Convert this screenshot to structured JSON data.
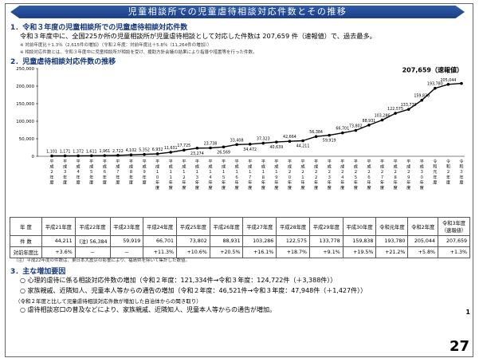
{
  "header": {
    "title": "児童相談所での児童虐待相談対応件数とその推移"
  },
  "section1": {
    "heading": "1．令和３年度の児童相談所での児童虐待相談対応件数",
    "line1": "令和３年度中に、全国225か所の児童相談所が児童虐待相談として対応した件数は 207,659 件（速報値）で、過去最多。",
    "note1": "※ 対前年度比＋1.3％（2,615件の増加）（令和２年度：対前年度比＋5.8％（11,264件の増加））",
    "note2": "※ 相談対応件数とは、令和３年度中に児童相談所が相談を受け、援助方針会議の結果により指導や措置等を行った件数。"
  },
  "section2": {
    "heading": "2．児童虐待相談対応件数の推移"
  },
  "chart_data": {
    "type": "line",
    "ylim": [
      0,
      250000
    ],
    "yticks": [
      "250,000",
      "200,000",
      "150,000",
      "100,000",
      "50,000",
      "0"
    ],
    "x": [
      "平成2年度",
      "平成3年度",
      "平成4年度",
      "平成5年度",
      "平成6年度",
      "平成7年度",
      "平成8年度",
      "平成9年度",
      "平成10年度",
      "平成11年度",
      "平成12年度",
      "平成13年度",
      "平成14年度",
      "平成15年度",
      "平成16年度",
      "平成17年度",
      "平成18年度",
      "平成19年度",
      "平成20年度",
      "平成21年度",
      "平成22年度",
      "平成23年度",
      "平成24年度",
      "平成25年度",
      "平成26年度",
      "平成27年度",
      "平成28年度",
      "平成29年度",
      "平成30年度",
      "令和元年度",
      "令和2年度",
      "令和3年度"
    ],
    "xlabels": [
      "平成２年度",
      "平成３年度",
      "平成４年度",
      "平成５年度",
      "平成６年度",
      "平成７年度",
      "平成８年度",
      "平成９年度",
      "平成１０年度",
      "平成１１年度",
      "平成１２年度",
      "平成１３年度",
      "平成１４年度",
      "平成１５年度",
      "平成１６年度",
      "平成１７年度",
      "平成１８年度",
      "平成１９年度",
      "平成２０年度",
      "平成２１年度",
      "平成２２年度",
      "平成２３年度",
      "平成２４年度",
      "平成２５年度",
      "平成２６年度",
      "平成２７年度",
      "平成２８年度",
      "平成２９年度",
      "平成３０年度",
      "令和元年度",
      "令和２年度",
      "令和３年度"
    ],
    "values": [
      1101,
      1171,
      1372,
      1611,
      1961,
      2722,
      4102,
      5352,
      6932,
      11631,
      17725,
      23274,
      23738,
      26569,
      33408,
      34472,
      37323,
      40639,
      42664,
      44211,
      56384,
      59919,
      66701,
      73802,
      88931,
      103286,
      122575,
      133778,
      159838,
      193780,
      205044,
      207659
    ],
    "labels": [
      "1,101",
      "1,171",
      "1,372",
      "1,611",
      "1,961",
      "2,722",
      "4,102",
      "5,352",
      "6,932",
      "11,631",
      "17,725",
      "23,274",
      "23,738",
      "26,569",
      "33,408",
      "34,472",
      "37,323",
      "40,639",
      "42,664",
      "44,211",
      "56,384",
      "59,919",
      "66,701",
      "73,802",
      "88,931",
      "103,286",
      "122,575",
      "133,778",
      "159,838",
      "193,780",
      "205,044",
      "207,659"
    ],
    "final_label": "207,659（速報値）"
  },
  "table": {
    "headers": [
      "年 度",
      "平成21年度",
      "平成22年度",
      "平成23年度",
      "平成24年度",
      "平成25年度",
      "平成26年度",
      "平成27年度",
      "平成28年度",
      "平成29年度",
      "平成30年度",
      "令和元年度",
      "令和2年度",
      "令和3年度\n（速報値）"
    ],
    "rows": [
      {
        "label": "件 数",
        "cells": [
          "44,211",
          "(注) 56,384",
          "59,919",
          "66,701",
          "73,802",
          "88,931",
          "103,286",
          "122,575",
          "133,778",
          "159,838",
          "193,780",
          "205,044",
          "207,659"
        ]
      },
      {
        "label": "対前年度比",
        "cells": [
          "+3.6%",
          "－",
          "－",
          "+11.3%",
          "+10.6%",
          "+20.5%",
          "+16.1%",
          "+18.7%",
          "+9.1%",
          "+19.5%",
          "+21.2%",
          "+5.8%",
          "+1.3%"
        ]
      }
    ],
    "note": "（注）平成22年度の件数は、東日本大震災の影響により、福島県を除いて集計した数値。"
  },
  "section3": {
    "heading": "3．主な増加要因",
    "item1": "○ 心理的虐待に係る相談対応件数の増加（令和２年度：121,334件→令和３年度：124,722件（＋3,388件））",
    "item2": "○ 家族親戚、近隣知人、児童本人等からの通告の増加（令和２年度：46,521件→令和３年度：47,948件（＋1,427件））",
    "sub": "（令和２年度と比して児童虐待相談対応件数が増加した自治体からの聞き取り）",
    "item3": "○ 虐待相談窓口の普及などにより、家族親戚、近隣知人、児童本人等からの通告が増加。"
  },
  "page": {
    "small_number": "1",
    "number": "27"
  }
}
